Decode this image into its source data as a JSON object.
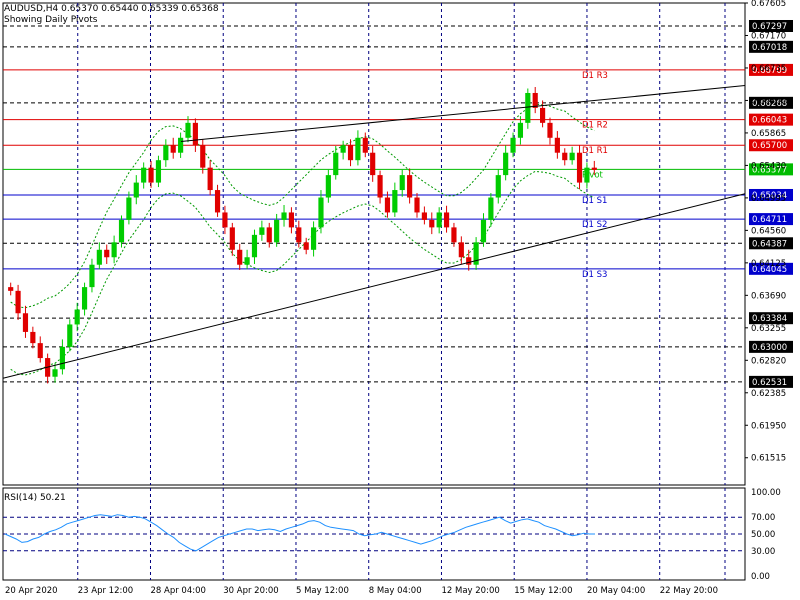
{
  "header": {
    "symbol_line": "AUDUSD,H4  0.65370 0.65440 0.65339 0.65368",
    "subtitle": "Showing Daily Pivots"
  },
  "rsi_panel": {
    "label": "RSI(14) 50.21"
  },
  "colors": {
    "up": "#00cc00",
    "down": "#e00000",
    "pivot": "#00bb00",
    "resistance": "#e00000",
    "support": "#0000cc",
    "grid": "#000080",
    "bands": "#009900",
    "rsi": "#1e90ff",
    "trend": "#000000"
  },
  "chart_data": [
    {
      "type": "candlestick",
      "title": "AUDUSD,H4",
      "ylim": [
        0.6115,
        0.67605
      ],
      "y_ticks": [
        "0.67605",
        "0.67170",
        "0.66735",
        "0.66300",
        "0.65865",
        "0.65430",
        "0.64995",
        "0.64560",
        "0.64125",
        "0.63690",
        "0.63255",
        "0.62820",
        "0.62385",
        "0.61950",
        "0.61515"
      ],
      "x_ticks": [
        "20 Apr 2020",
        "23 Apr 12:00",
        "28 Apr 04:00",
        "30 Apr 20:00",
        "5 May 12:00",
        "8 May 04:00",
        "12 May 20:00",
        "15 May 12:00",
        "20 May 04:00",
        "22 May 20:00"
      ],
      "close_series": [
        0.6375,
        0.6345,
        0.632,
        0.6305,
        0.6285,
        0.626,
        0.627,
        0.63,
        0.633,
        0.635,
        0.638,
        0.641,
        0.643,
        0.642,
        0.644,
        0.647,
        0.65,
        0.652,
        0.654,
        0.652,
        0.655,
        0.657,
        0.656,
        0.658,
        0.66,
        0.657,
        0.654,
        0.651,
        0.648,
        0.646,
        0.643,
        0.641,
        0.642,
        0.645,
        0.646,
        0.644,
        0.647,
        0.648,
        0.646,
        0.644,
        0.643,
        0.646,
        0.65,
        0.653,
        0.656,
        0.657,
        0.655,
        0.658,
        0.656,
        0.653,
        0.65,
        0.648,
        0.651,
        0.653,
        0.65,
        0.648,
        0.647,
        0.646,
        0.648,
        0.646,
        0.644,
        0.642,
        0.641,
        0.644,
        0.647,
        0.65,
        0.653,
        0.656,
        0.658,
        0.66,
        0.664,
        0.662,
        0.66,
        0.658,
        0.656,
        0.655,
        0.656,
        0.652,
        0.654,
        0.6537
      ],
      "horizontal_levels": [
        {
          "value": 0.67297,
          "label": "0.67297",
          "style": "dashed",
          "color": "#000000"
        },
        {
          "value": 0.67018,
          "label": "0.67018",
          "style": "dashed",
          "color": "#000000"
        },
        {
          "value": 0.66709,
          "label": "0.66709",
          "style": "solid",
          "color": "#e00000",
          "tag": "D1 R3"
        },
        {
          "value": 0.66268,
          "label": "0.66268",
          "style": "dashed",
          "color": "#000000"
        },
        {
          "value": 0.66043,
          "label": "0.66043",
          "style": "solid",
          "color": "#e00000",
          "tag": "D1 R2"
        },
        {
          "value": 0.657,
          "label": "0.65700",
          "style": "solid",
          "color": "#e00000",
          "tag": "D1 R1"
        },
        {
          "value": 0.65377,
          "label": "0.65377",
          "style": "solid",
          "color": "#00bb00",
          "tag": "Pivot"
        },
        {
          "value": 0.65034,
          "label": "0.65034",
          "style": "solid",
          "color": "#0000cc",
          "tag": "D1 S1"
        },
        {
          "value": 0.64711,
          "label": "0.64711",
          "style": "solid",
          "color": "#0000cc",
          "tag": "D1 S2"
        },
        {
          "value": 0.64387,
          "label": "0.64387",
          "style": "dashed",
          "color": "#000000"
        },
        {
          "value": 0.64045,
          "label": "0.64045",
          "style": "solid",
          "color": "#0000cc",
          "tag": "D1 S3"
        },
        {
          "value": 0.63384,
          "label": "0.63384",
          "style": "dashed",
          "color": "#000000"
        },
        {
          "value": 0.63,
          "label": "0.63000",
          "style": "dashed",
          "color": "#000000"
        },
        {
          "value": 0.62531,
          "label": "0.62531",
          "style": "dashed",
          "color": "#000000"
        }
      ],
      "trendlines": [
        {
          "from": [
            0,
            0.6258
          ],
          "to": [
            1,
            0.6505
          ]
        },
        {
          "from": [
            0.24,
            0.6575
          ],
          "to": [
            1,
            0.665
          ]
        }
      ],
      "grid": true
    },
    {
      "type": "line",
      "title": "RSI(14) 50.21",
      "ylim": [
        0,
        100
      ],
      "y_ticks": [
        "100.00",
        "70.00",
        "50.00",
        "30.00",
        "0.00"
      ],
      "levels": [
        70,
        50,
        30
      ],
      "values": [
        50,
        47,
        44,
        40,
        41,
        44,
        46,
        50,
        53,
        55,
        58,
        62,
        64,
        66,
        68,
        70,
        72,
        73,
        72,
        71,
        73,
        72,
        70,
        71,
        70,
        68,
        64,
        60,
        55,
        50,
        46,
        40,
        36,
        32,
        30,
        34,
        38,
        42,
        46,
        48,
        50,
        52,
        54,
        56,
        56,
        54,
        55,
        56,
        55,
        53,
        56,
        58,
        60,
        62,
        65,
        66,
        64,
        60,
        58,
        57,
        56,
        55,
        54,
        50,
        48,
        49,
        50,
        52,
        50,
        48,
        46,
        44,
        42,
        40,
        38,
        40,
        42,
        45,
        48,
        50,
        52,
        55,
        58,
        60,
        62,
        64,
        66,
        68,
        70,
        66,
        63,
        65,
        67,
        68,
        66,
        64,
        60,
        58,
        56,
        53,
        50,
        48,
        49,
        51,
        50,
        50
      ]
    }
  ]
}
